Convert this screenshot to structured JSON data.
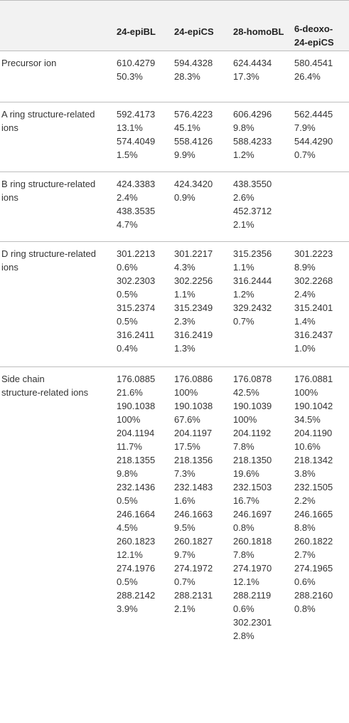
{
  "headers": [
    "",
    "24-epiBL",
    "24-epiCS",
    "28-homoBL",
    "6-deoxo-24-epiCS"
  ],
  "header_lines": {
    "col4": [
      "6-deoxo-",
      "24-epiCS"
    ]
  },
  "rows": [
    {
      "label": "Precursor ion",
      "cells": [
        [
          [
            "610.4279",
            "50.3%"
          ]
        ],
        [
          [
            "594.4328",
            "28.3%"
          ]
        ],
        [
          [
            "624.4434",
            "17.3%"
          ]
        ],
        [
          [
            "580.4541",
            "26.4%"
          ]
        ]
      ]
    },
    {
      "label": "A ring structure-related ions",
      "cells": [
        [
          [
            "592.4173",
            "13.1%"
          ],
          [
            "574.4049",
            "1.5%"
          ]
        ],
        [
          [
            "576.4223",
            "45.1%"
          ],
          [
            "558.4126",
            "9.9%"
          ]
        ],
        [
          [
            "606.4296",
            "9.8%"
          ],
          [
            "588.4233",
            "1.2%"
          ]
        ],
        [
          [
            "562.4445",
            "7.9%"
          ],
          [
            "544.4290",
            "0.7%"
          ]
        ]
      ]
    },
    {
      "label": "B ring structure-related ions",
      "cells": [
        [
          [
            "424.3383",
            "2.4%"
          ],
          [
            "438.3535",
            "4.7%"
          ]
        ],
        [
          [
            "424.3420",
            "0.9%"
          ]
        ],
        [
          [
            "438.3550",
            "2.6%"
          ],
          [
            "452.3712",
            "2.1%"
          ]
        ],
        []
      ]
    },
    {
      "label": "D ring structure-related ions",
      "cells": [
        [
          [
            "301.2213",
            "0.6%"
          ],
          [
            "302.2303",
            "0.5%"
          ],
          [
            "315.2374",
            "0.5%"
          ],
          [
            "316.2411",
            "0.4%"
          ]
        ],
        [
          [
            "301.2217",
            "4.3%"
          ],
          [
            "302.2256",
            "1.1%"
          ],
          [
            "315.2349",
            "2.3%"
          ],
          [
            "316.2419",
            "1.3%"
          ]
        ],
        [
          [
            "315.2356",
            "1.1%"
          ],
          [
            "316.2444",
            "1.2%"
          ],
          [
            "329.2432",
            "0.7%"
          ]
        ],
        [
          [
            "301.2223",
            "8.9%"
          ],
          [
            "302.2268",
            "2.4%"
          ],
          [
            "315.2401",
            "1.4%"
          ],
          [
            "316.2437",
            "1.0%"
          ]
        ]
      ]
    },
    {
      "label": "Side chain structure-related ions",
      "cells": [
        [
          [
            "176.0885",
            "21.6%"
          ],
          [
            "190.1038",
            "100%"
          ],
          [
            "204.1194",
            "11.7%"
          ],
          [
            "218.1355",
            "9.8%"
          ],
          [
            "232.1436",
            "0.5%"
          ],
          [
            "246.1664",
            "4.5%"
          ],
          [
            "260.1823",
            "12.1%"
          ],
          [
            "274.1976",
            "0.5%"
          ],
          [
            "288.2142",
            "3.9%"
          ]
        ],
        [
          [
            "176.0886",
            "100%"
          ],
          [
            "190.1038",
            "67.6%"
          ],
          [
            "204.1197",
            "17.5%"
          ],
          [
            "218.1356",
            "7.3%"
          ],
          [
            "232.1483",
            "1.6%"
          ],
          [
            "246.1663",
            "9.5%"
          ],
          [
            "260.1827",
            "9.7%"
          ],
          [
            "274.1972",
            "0.7%"
          ],
          [
            "288.2131",
            "2.1%"
          ]
        ],
        [
          [
            "176.0878",
            "42.5%"
          ],
          [
            "190.1039",
            "100%"
          ],
          [
            "204.1192",
            "7.8%"
          ],
          [
            "218.1350",
            "19.6%"
          ],
          [
            "232.1503",
            "16.7%"
          ],
          [
            "246.1697",
            "0.8%"
          ],
          [
            "260.1818",
            "7.8%"
          ],
          [
            "274.1970",
            "12.1%"
          ],
          [
            "288.2119",
            "0.6%"
          ],
          [
            "302.2301",
            "2.8%"
          ]
        ],
        [
          [
            "176.0881",
            "100%"
          ],
          [
            "190.1042",
            "34.5%"
          ],
          [
            "204.1190",
            "10.6%"
          ],
          [
            "218.1342",
            "3.8%"
          ],
          [
            "232.1505",
            "2.2%"
          ],
          [
            "246.1665",
            "8.8%"
          ],
          [
            "260.1822",
            "2.7%"
          ],
          [
            "274.1965",
            "0.6%"
          ],
          [
            "288.2160",
            "0.8%"
          ]
        ]
      ]
    }
  ],
  "label_lines": {
    "1": [
      "A ring structure-related",
      "ions"
    ],
    "2": [
      "B ring structure-related",
      "ions"
    ],
    "3": [
      "D ring structure-related",
      "ions"
    ],
    "4": [
      "Side chain",
      "structure-related ions"
    ]
  }
}
